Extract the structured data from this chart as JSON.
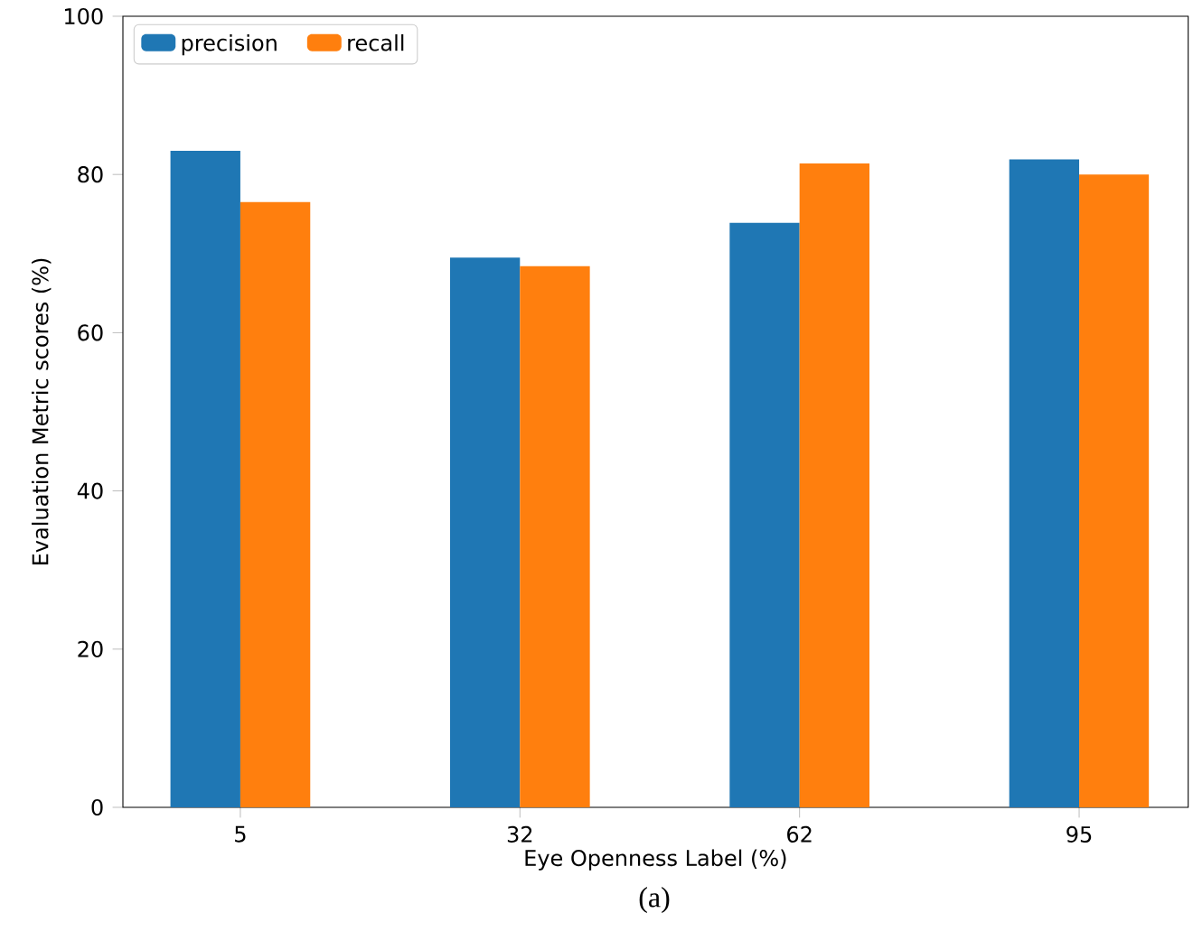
{
  "chart_data": {
    "type": "bar",
    "xlabel": "Eye Openness Label (%)",
    "ylabel": "Evaluation Metric scores (%)",
    "categories": [
      "5",
      "32",
      "62",
      "95"
    ],
    "series": [
      {
        "name": "precision",
        "color": "#1f77b4",
        "values": [
          83.0,
          69.5,
          73.9,
          81.9
        ]
      },
      {
        "name": "recall",
        "color": "#ff7f0e",
        "values": [
          76.5,
          68.4,
          81.4,
          80.0
        ]
      }
    ],
    "ylim": [
      0,
      100
    ],
    "yticks": [
      0,
      20,
      40,
      60,
      80,
      100
    ],
    "legend": "top left",
    "grid": false,
    "annotations": [
      "(a)"
    ]
  }
}
